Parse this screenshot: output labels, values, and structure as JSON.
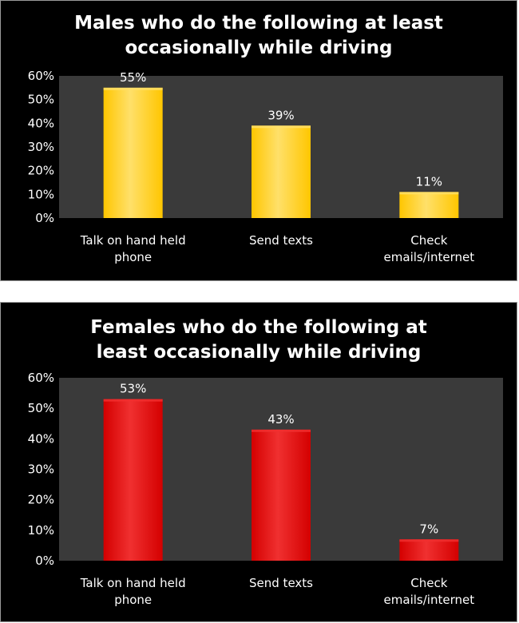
{
  "chart_data": [
    {
      "type": "bar",
      "title_lines": [
        "Males who do the following at least",
        "occasionally while driving"
      ],
      "categories": [
        [
          "Talk on hand held",
          "phone"
        ],
        [
          "Send texts"
        ],
        [
          "Check",
          "emails/internet"
        ]
      ],
      "values": [
        55,
        39,
        11
      ],
      "data_labels": [
        "55%",
        "39%",
        "11%"
      ],
      "yticks": [
        "0%",
        "10%",
        "20%",
        "30%",
        "40%",
        "50%",
        "60%"
      ],
      "ylim": [
        0,
        60
      ],
      "bar_color": "#ffc600",
      "bar_highlight": "#ffe06a",
      "plot_bg": "#3a3a3a",
      "grid": false
    },
    {
      "type": "bar",
      "title_lines": [
        "Females who do the following at",
        "least occasionally while driving"
      ],
      "categories": [
        [
          "Talk on hand held",
          "phone"
        ],
        [
          "Send texts"
        ],
        [
          "Check",
          "emails/internet"
        ]
      ],
      "values": [
        53,
        43,
        7
      ],
      "data_labels": [
        "53%",
        "43%",
        "7%"
      ],
      "yticks": [
        "0%",
        "10%",
        "20%",
        "30%",
        "40%",
        "50%",
        "60%"
      ],
      "ylim": [
        0,
        60
      ],
      "bar_color": "#d40000",
      "bar_highlight": "#f03030",
      "plot_bg": "#3a3a3a",
      "grid": false
    }
  ]
}
